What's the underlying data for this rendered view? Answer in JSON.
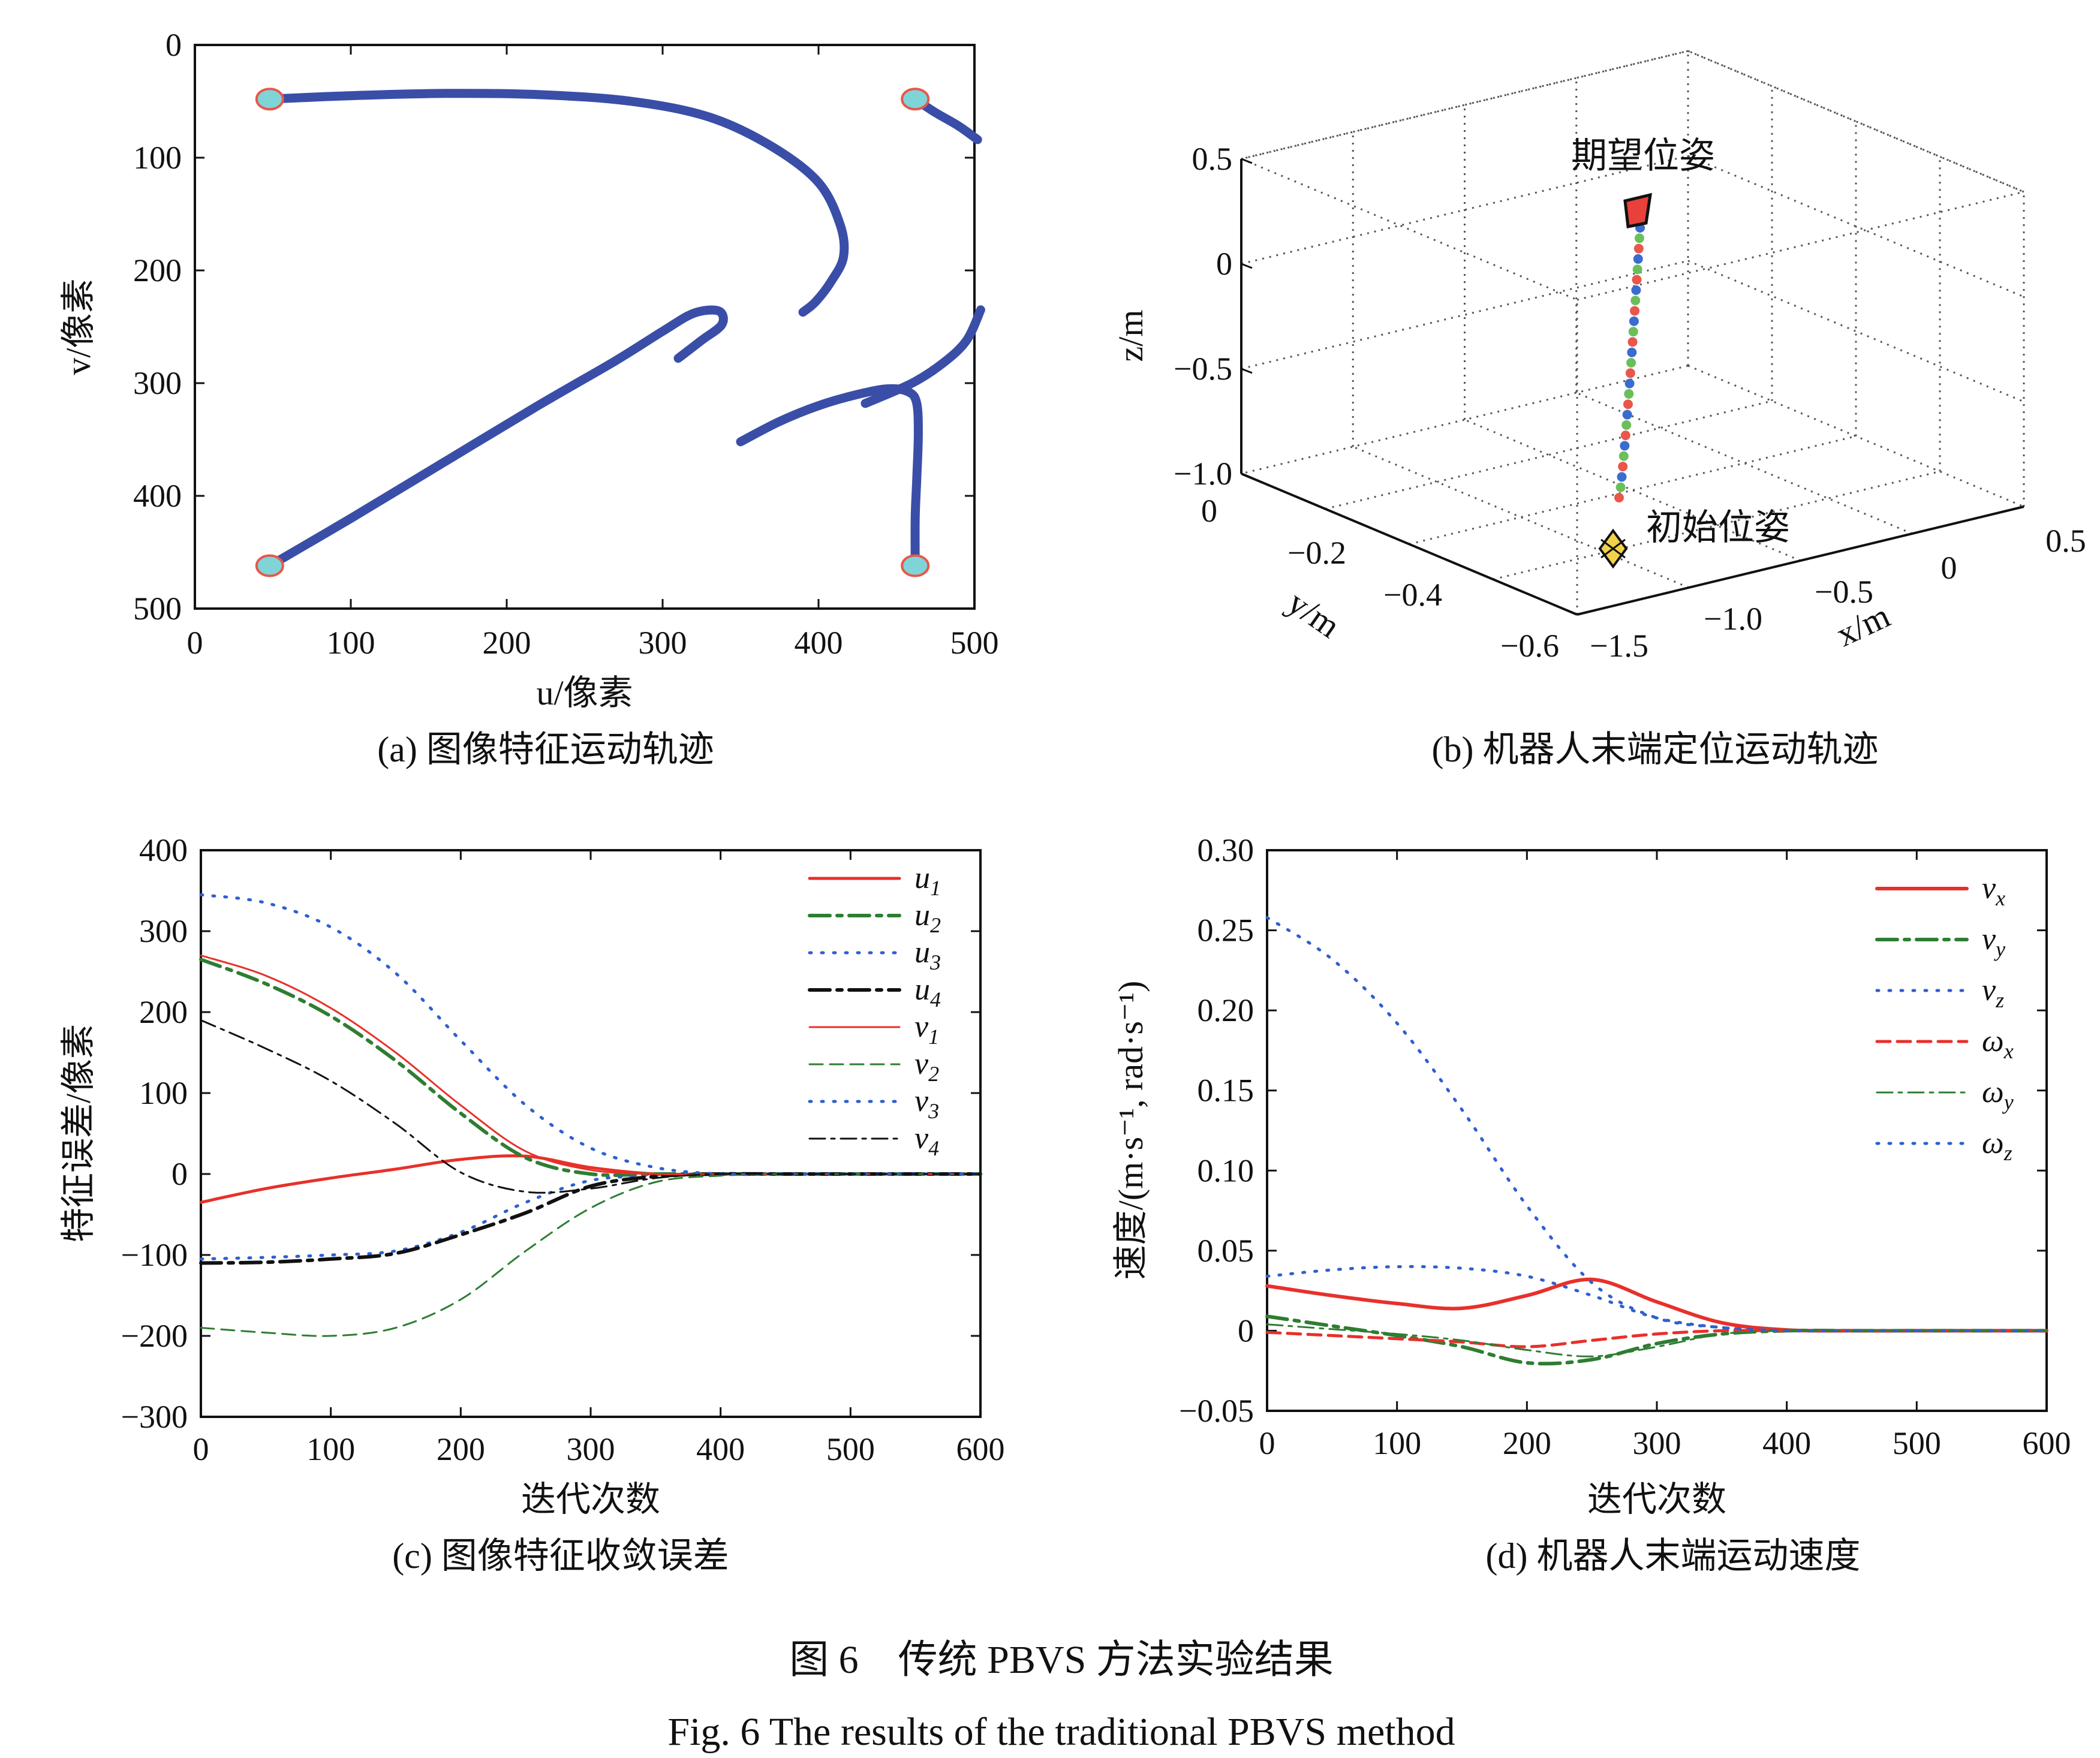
{
  "figure_caption_cn": "图 6　传统 PBVS 方法实验结果",
  "figure_caption_en": "Fig. 6   The results of the traditional PBVS method",
  "chart_data": [
    {
      "id": "a",
      "type": "scatter",
      "caption": "(a) 图像特征运动轨迹",
      "xlabel": "u/像素",
      "ylabel": "v/像素",
      "xlim": [
        0,
        500
      ],
      "ylim": [
        500,
        0
      ],
      "xticks": [
        "0",
        "100",
        "200",
        "300",
        "400",
        "500"
      ],
      "yticks": [
        "0",
        "100",
        "200",
        "300",
        "400",
        "500"
      ],
      "colors": {
        "traj": "#3a4ea8",
        "marker_fill": "#7fd4d8",
        "marker_edge": "#e8574a"
      },
      "markers": [
        [
          48,
          48
        ],
        [
          462,
          48
        ],
        [
          48,
          462
        ],
        [
          462,
          462
        ]
      ],
      "trajectories": [
        [
          [
            48,
            48
          ],
          [
            100,
            45
          ],
          [
            160,
            43
          ],
          [
            220,
            44
          ],
          [
            280,
            50
          ],
          [
            330,
            64
          ],
          [
            370,
            90
          ],
          [
            400,
            122
          ],
          [
            414,
            160
          ],
          [
            416,
            188
          ],
          [
            408,
            210
          ],
          [
            398,
            228
          ],
          [
            390,
            237
          ]
        ],
        [
          [
            462,
            48
          ],
          [
            475,
            60
          ],
          [
            490,
            72
          ],
          [
            502,
            84
          ]
        ],
        [
          [
            48,
            462
          ],
          [
            100,
            420
          ],
          [
            160,
            370
          ],
          [
            220,
            320
          ],
          [
            270,
            280
          ],
          [
            300,
            254
          ],
          [
            320,
            238
          ],
          [
            336,
            236
          ],
          [
            338,
            248
          ],
          [
            325,
            262
          ],
          [
            310,
            278
          ]
        ],
        [
          [
            462,
            462
          ],
          [
            462,
            420
          ],
          [
            463,
            385
          ],
          [
            464,
            345
          ],
          [
            463,
            318
          ],
          [
            458,
            308
          ],
          [
            445,
            305
          ],
          [
            425,
            310
          ],
          [
            400,
            320
          ],
          [
            375,
            334
          ],
          [
            350,
            352
          ]
        ],
        [
          [
            430,
            318
          ],
          [
            460,
            300
          ],
          [
            480,
            282
          ],
          [
            495,
            262
          ],
          [
            504,
            235
          ]
        ]
      ]
    },
    {
      "id": "b",
      "type": "scatter",
      "caption": "(b) 机器人末端定位运动轨迹",
      "xlabel": "x/m",
      "ylabel": "y/m",
      "zlabel": "z/m",
      "xticks": [
        "−1.5",
        "−1.0",
        "−0.5",
        "0",
        "0.5"
      ],
      "yticks": [
        "0",
        "−0.2",
        "−0.4",
        "−0.6"
      ],
      "zticks": [
        "0.5",
        "0",
        "−0.5",
        "−1.0"
      ],
      "start_label": "初始位姿",
      "end_label": "期望位姿",
      "colors": {
        "start_fill": "#f2d24a",
        "end_fill": "#e8403a",
        "dots": [
          "#e8574a",
          "#6bbf59",
          "#3a6cd0"
        ]
      }
    },
    {
      "id": "c",
      "type": "line",
      "caption": "(c) 图像特征收敛误差",
      "xlabel": "迭代次数",
      "ylabel": "特征误差/像素",
      "xlim": [
        0,
        600
      ],
      "ylim": [
        -300,
        400
      ],
      "xticks": [
        "0",
        "100",
        "200",
        "300",
        "400",
        "500",
        "600"
      ],
      "yticks": [
        "400",
        "300",
        "200",
        "100",
        "0",
        "−100",
        "−200",
        "−300"
      ],
      "x": [
        0,
        50,
        100,
        150,
        200,
        250,
        300,
        350,
        400,
        450,
        500,
        550,
        600
      ],
      "series": [
        {
          "name": "u",
          "sub": "1",
          "color": "#e8302a",
          "width": 5,
          "dash": "",
          "values": [
            -35,
            -18,
            -5,
            6,
            18,
            22,
            8,
            0,
            0,
            0,
            0,
            0,
            0
          ]
        },
        {
          "name": "u",
          "sub": "2",
          "color": "#2e7d32",
          "width": 6,
          "dash": "34 12 8 12",
          "values": [
            265,
            235,
            195,
            140,
            75,
            20,
            0,
            0,
            0,
            0,
            0,
            0,
            0
          ]
        },
        {
          "name": "u",
          "sub": "3",
          "color": "#2f5fd0",
          "width": 5,
          "dash": "3 17",
          "values": [
            -105,
            -103,
            -100,
            -95,
            -72,
            -35,
            -8,
            -2,
            0,
            0,
            0,
            0,
            0
          ]
        },
        {
          "name": "u",
          "sub": "4",
          "color": "#111111",
          "width": 6,
          "dash": "34 12 8 12",
          "values": [
            -110,
            -109,
            -105,
            -98,
            -75,
            -48,
            -15,
            -3,
            0,
            0,
            0,
            0,
            0
          ]
        },
        {
          "name": "v",
          "sub": "1",
          "color": "#e8302a",
          "width": 3,
          "dash": "",
          "values": [
            270,
            245,
            205,
            150,
            85,
            28,
            5,
            0,
            0,
            0,
            0,
            0,
            0
          ]
        },
        {
          "name": "v",
          "sub": "2",
          "color": "#2e7d32",
          "width": 3,
          "dash": "22 12",
          "values": [
            -190,
            -196,
            -200,
            -190,
            -155,
            -95,
            -42,
            -10,
            -2,
            0,
            0,
            0,
            0
          ]
        },
        {
          "name": "v",
          "sub": "3",
          "color": "#2f5fd0",
          "width": 5,
          "dash": "3 17",
          "values": [
            345,
            335,
            305,
            248,
            165,
            85,
            32,
            8,
            0,
            0,
            0,
            0,
            0
          ]
        },
        {
          "name": "v",
          "sub": "4",
          "color": "#111111",
          "width": 3,
          "dash": "26 10 6 10",
          "values": [
            190,
            155,
            115,
            62,
            2,
            -22,
            -18,
            -5,
            0,
            0,
            0,
            0,
            0
          ]
        }
      ]
    },
    {
      "id": "d",
      "type": "line",
      "caption": "(d) 机器人末端运动速度",
      "xlabel": "迭代次数",
      "ylabel": "速度/(m·s⁻¹, rad·s⁻¹)",
      "xlim": [
        0,
        600
      ],
      "ylim": [
        -0.05,
        0.3
      ],
      "xticks": [
        "0",
        "100",
        "200",
        "300",
        "400",
        "500",
        "600"
      ],
      "yticks": [
        "0.30",
        "0.25",
        "0.20",
        "0.15",
        "0.10",
        "0.05",
        "0",
        "−0.05"
      ],
      "x": [
        0,
        50,
        100,
        150,
        200,
        250,
        300,
        350,
        400,
        450,
        500,
        550,
        600
      ],
      "series": [
        {
          "name": "v",
          "sub": "x",
          "color": "#e8302a",
          "width": 6,
          "dash": "",
          "values": [
            0.028,
            0.022,
            0.017,
            0.014,
            0.022,
            0.032,
            0.018,
            0.005,
            0.0005,
            0,
            0,
            0,
            0
          ]
        },
        {
          "name": "v",
          "sub": "y",
          "color": "#2e7d32",
          "width": 6,
          "dash": "34 12 8 12",
          "values": [
            0.009,
            0.003,
            -0.003,
            -0.01,
            -0.02,
            -0.018,
            -0.008,
            -0.002,
            0,
            0,
            0,
            0,
            0
          ]
        },
        {
          "name": "v",
          "sub": "z",
          "color": "#2f5fd0",
          "width": 5,
          "dash": "3 17",
          "values": [
            0.258,
            0.232,
            0.192,
            0.138,
            0.078,
            0.03,
            0.008,
            0.002,
            0,
            0,
            0,
            0,
            0
          ]
        },
        {
          "name": "ω",
          "sub": "x",
          "color": "#e8302a",
          "width": 5,
          "dash": "22 12",
          "values": [
            -0.001,
            -0.003,
            -0.005,
            -0.007,
            -0.01,
            -0.006,
            -0.002,
            0,
            0,
            0,
            0,
            0,
            0
          ]
        },
        {
          "name": "ω",
          "sub": "y",
          "color": "#2e7d32",
          "width": 3,
          "dash": "26 10 6 10",
          "values": [
            0.004,
            0.001,
            -0.002,
            -0.006,
            -0.012,
            -0.016,
            -0.01,
            -0.002,
            0,
            0,
            0,
            0,
            0
          ]
        },
        {
          "name": "ω",
          "sub": "z",
          "color": "#2f5fd0",
          "width": 5,
          "dash": "3 17",
          "values": [
            0.034,
            0.038,
            0.04,
            0.039,
            0.034,
            0.022,
            0.008,
            0.002,
            0,
            0,
            0,
            0,
            0
          ]
        }
      ]
    }
  ]
}
